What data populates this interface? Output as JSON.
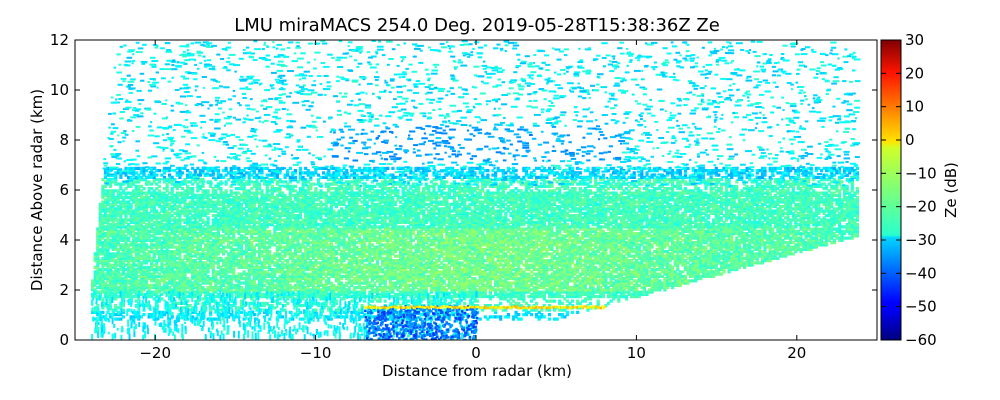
{
  "chart_data": {
    "type": "heatmap",
    "title": "LMU miraMACS 254.0 Deg. 2019-05-28T15:38:36Z  Ze",
    "xlabel": "Distance from radar (km)",
    "ylabel": "Distance Above radar  (km)",
    "xlim": [
      -25,
      25
    ],
    "ylim": [
      0,
      12
    ],
    "x_ticks": [
      -20,
      -10,
      0,
      10,
      20
    ],
    "x_tick_labels": [
      "−20",
      "−10",
      "0",
      "10",
      "20"
    ],
    "y_ticks": [
      0,
      2,
      4,
      6,
      8,
      10,
      12
    ],
    "y_tick_labels": [
      "0",
      "2",
      "4",
      "6",
      "8",
      "10",
      "12"
    ],
    "colorbar": {
      "label": "Ze (dB)",
      "range": [
        -60,
        30
      ],
      "ticks": [
        30,
        20,
        10,
        0,
        -10,
        -20,
        -30,
        -40,
        -50,
        -60
      ],
      "tick_labels": [
        "30",
        "20",
        "10",
        "0",
        "−10",
        "−20",
        "−30",
        "−40",
        "−50",
        "−60"
      ],
      "colormap": "jet"
    },
    "scan_sector_km": {
      "left_edge_bottom": [
        -24,
        2.5
      ],
      "left_edge_top": [
        -22.5,
        12
      ],
      "right_edge_top": [
        22,
        12
      ],
      "right_edge_bottom": [
        23.7,
        4.2
      ],
      "ground_line_start": [
        0,
        0
      ],
      "ground_line_end": [
        23.7,
        4.2
      ]
    },
    "features": [
      {
        "name": "melting layer bright band",
        "altitude_km": 1.35,
        "x_range_km": [
          -7,
          8
        ],
        "ze_db": 0
      },
      {
        "name": "main cloud layer",
        "altitude_range_km": [
          2,
          6.5
        ],
        "ze_db_range": [
          -25,
          -10
        ]
      },
      {
        "name": "sparse returns aloft",
        "altitude_range_km": [
          6.5,
          12
        ],
        "ze_db_range": [
          -35,
          -20
        ]
      }
    ]
  }
}
